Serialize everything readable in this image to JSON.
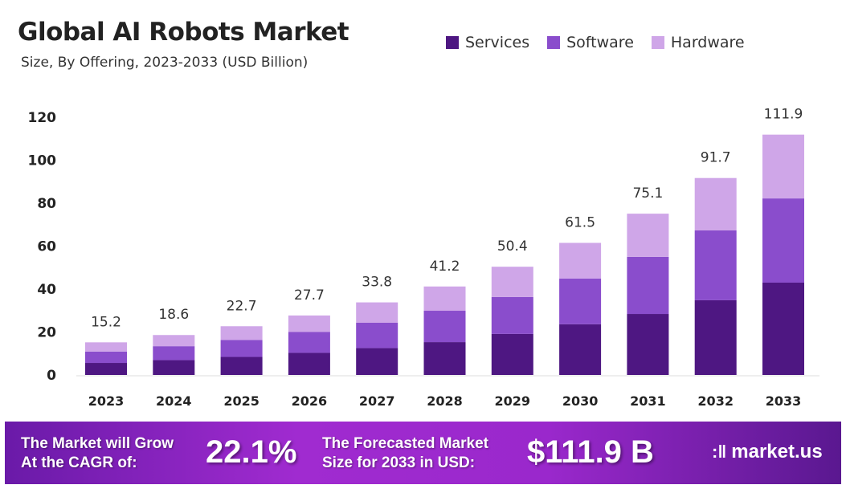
{
  "header": {
    "title": "Global AI Robots Market",
    "subtitle": "Size, By Offering, 2023-2033 (USD Billion)"
  },
  "chart_data": {
    "type": "bar",
    "stacked": true,
    "title": "Global AI Robots Market",
    "subtitle": "Size, By Offering, 2023-2033 (USD Billion)",
    "categories": [
      "2023",
      "2024",
      "2025",
      "2026",
      "2027",
      "2028",
      "2029",
      "2030",
      "2031",
      "2032",
      "2033"
    ],
    "series": [
      {
        "name": "Services",
        "color": "#4e1782",
        "values": [
          5.6,
          6.9,
          8.4,
          10.3,
          12.5,
          15.3,
          19.1,
          23.6,
          28.4,
          34.8,
          43.0
        ]
      },
      {
        "name": "Software",
        "color": "#8a4dcc",
        "values": [
          5.3,
          6.5,
          7.9,
          9.7,
          11.8,
          14.6,
          17.2,
          21.3,
          26.6,
          32.5,
          39.2
        ]
      },
      {
        "name": "Hardware",
        "color": "#cfa6e8",
        "values": [
          4.3,
          5.2,
          6.4,
          7.7,
          9.5,
          11.3,
          14.1,
          16.6,
          20.1,
          24.4,
          29.7
        ]
      }
    ],
    "totals": [
      "15.2",
      "18.6",
      "22.7",
      "27.7",
      "33.8",
      "41.2",
      "50.4",
      "61.5",
      "75.1",
      "91.7",
      "111.9"
    ],
    "yticks": [
      "0",
      "20",
      "40",
      "60",
      "80",
      "100",
      "120"
    ],
    "ylim": [
      0,
      120
    ],
    "grid": false,
    "legend": "top-right"
  },
  "banner": {
    "cagr_label_1": "The Market will Grow",
    "cagr_label_2": "At the CAGR of:",
    "cagr_value": "22.1%",
    "forecast_label_1": "The Forecasted Market",
    "forecast_label_2": "Size for 2033 in USD:",
    "forecast_value": "$111.9 B",
    "logo": "market.us"
  }
}
